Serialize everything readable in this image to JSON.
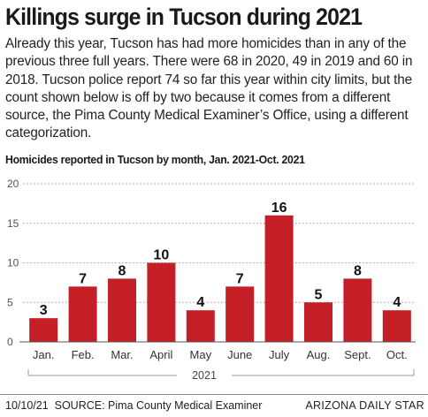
{
  "headline": "Killings surge in Tucson during 2021",
  "intro": "Already this year, Tucson has had more homicides than in any of the previous three full years. There were 68 in 2020, 49 in 2019 and 60 in 2018. Tucson police report 74 so far this year within city limits, but the count shown below is off by two because it comes from a different source, the Pima County Medical Examiner’s Office, using a different categorization.",
  "footer": {
    "date": "10/10/21",
    "source": "SOURCE: Pima County Medical Examiner",
    "credit": "ARIZONA DAILY STAR"
  },
  "chart_data": {
    "type": "bar",
    "title": "Homicides reported in Tucson by month, Jan. 2021-Oct. 2021",
    "categories": [
      "Jan.",
      "Feb.",
      "Mar.",
      "April",
      "May",
      "June",
      "July",
      "Aug.",
      "Sept.",
      "Oct."
    ],
    "values": [
      3,
      7,
      8,
      10,
      4,
      7,
      16,
      5,
      8,
      4
    ],
    "x_group_label": "2021",
    "xlabel": "",
    "ylabel": "",
    "ylim": [
      0,
      20
    ],
    "yticks": [
      0,
      5,
      10,
      15,
      20
    ],
    "grid": "horizontal dotted",
    "legend": "none",
    "bar_color": "#c41e26",
    "data_labels": true
  }
}
